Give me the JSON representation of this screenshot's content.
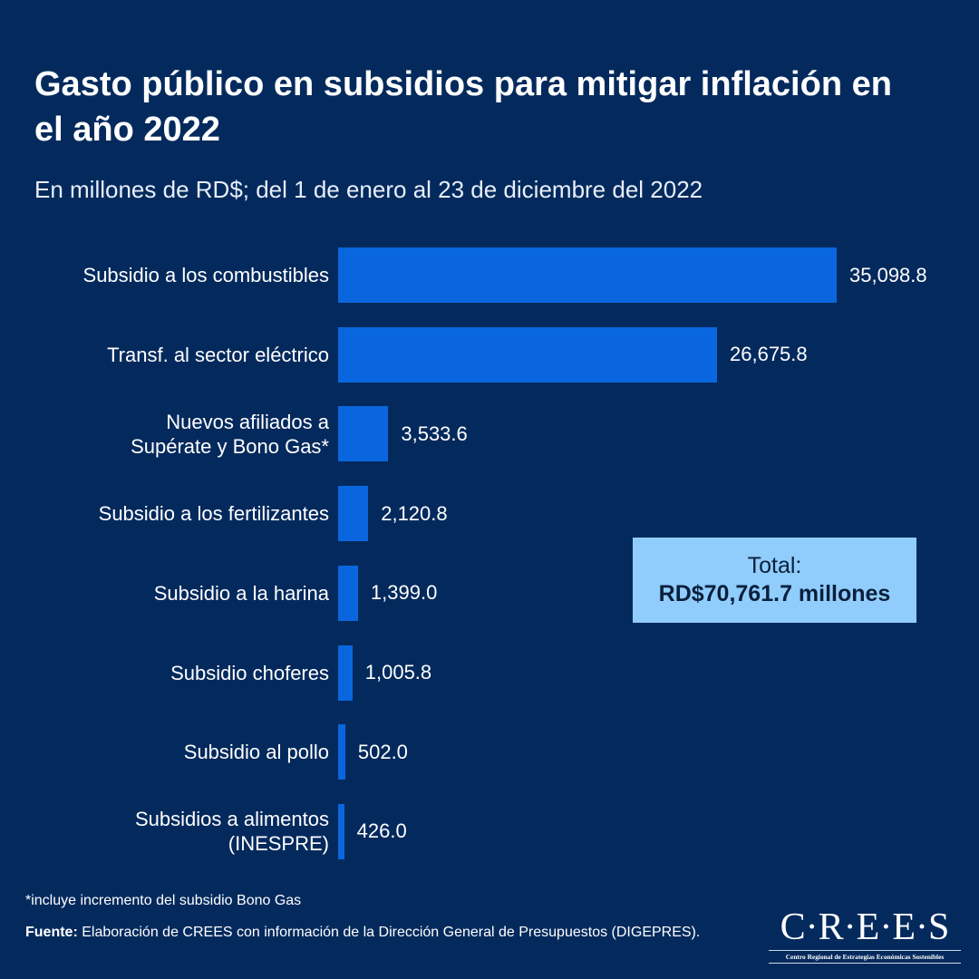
{
  "title": "Gasto público en subsidios para mitigar inflación en el año 2022",
  "subtitle": "En millones de RD$; del 1 de enero al 23 de diciembre del 2022",
  "chart_data": {
    "type": "bar",
    "orientation": "horizontal",
    "categories": [
      "Subsidio a los combustibles",
      "Transf. al sector eléctrico",
      "Nuevos afiliados a\nSupérate y Bono Gas*",
      "Subsidio a los fertilizantes",
      "Subsidio a la harina",
      "Subsidio choferes",
      "Subsidio al pollo",
      "Subsidios a alimentos\n(INESPRE)"
    ],
    "values": [
      35098.8,
      26675.8,
      3533.6,
      2120.8,
      1399.0,
      1005.8,
      502.0,
      426.0
    ],
    "value_labels": [
      "35,098.8",
      "26,675.8",
      "3,533.6",
      "2,120.8",
      "1,399.0",
      "1,005.8",
      "502.0",
      "426.0"
    ],
    "bar_color": "#0a66de",
    "grid": false
  },
  "total": {
    "label": "Total:",
    "value": "RD$70,761.7 millones"
  },
  "note": "*incluye incremento del subsidio Bono Gas",
  "source": {
    "label": "Fuente:",
    "text": " Elaboración de CREES con información de la Dirección General de Presupuestos (DIGEPRES)."
  },
  "logo": {
    "name": "C·R·E·E·S",
    "tagline": "Centro Regional de Estrategias Económicas Sostenibles"
  }
}
